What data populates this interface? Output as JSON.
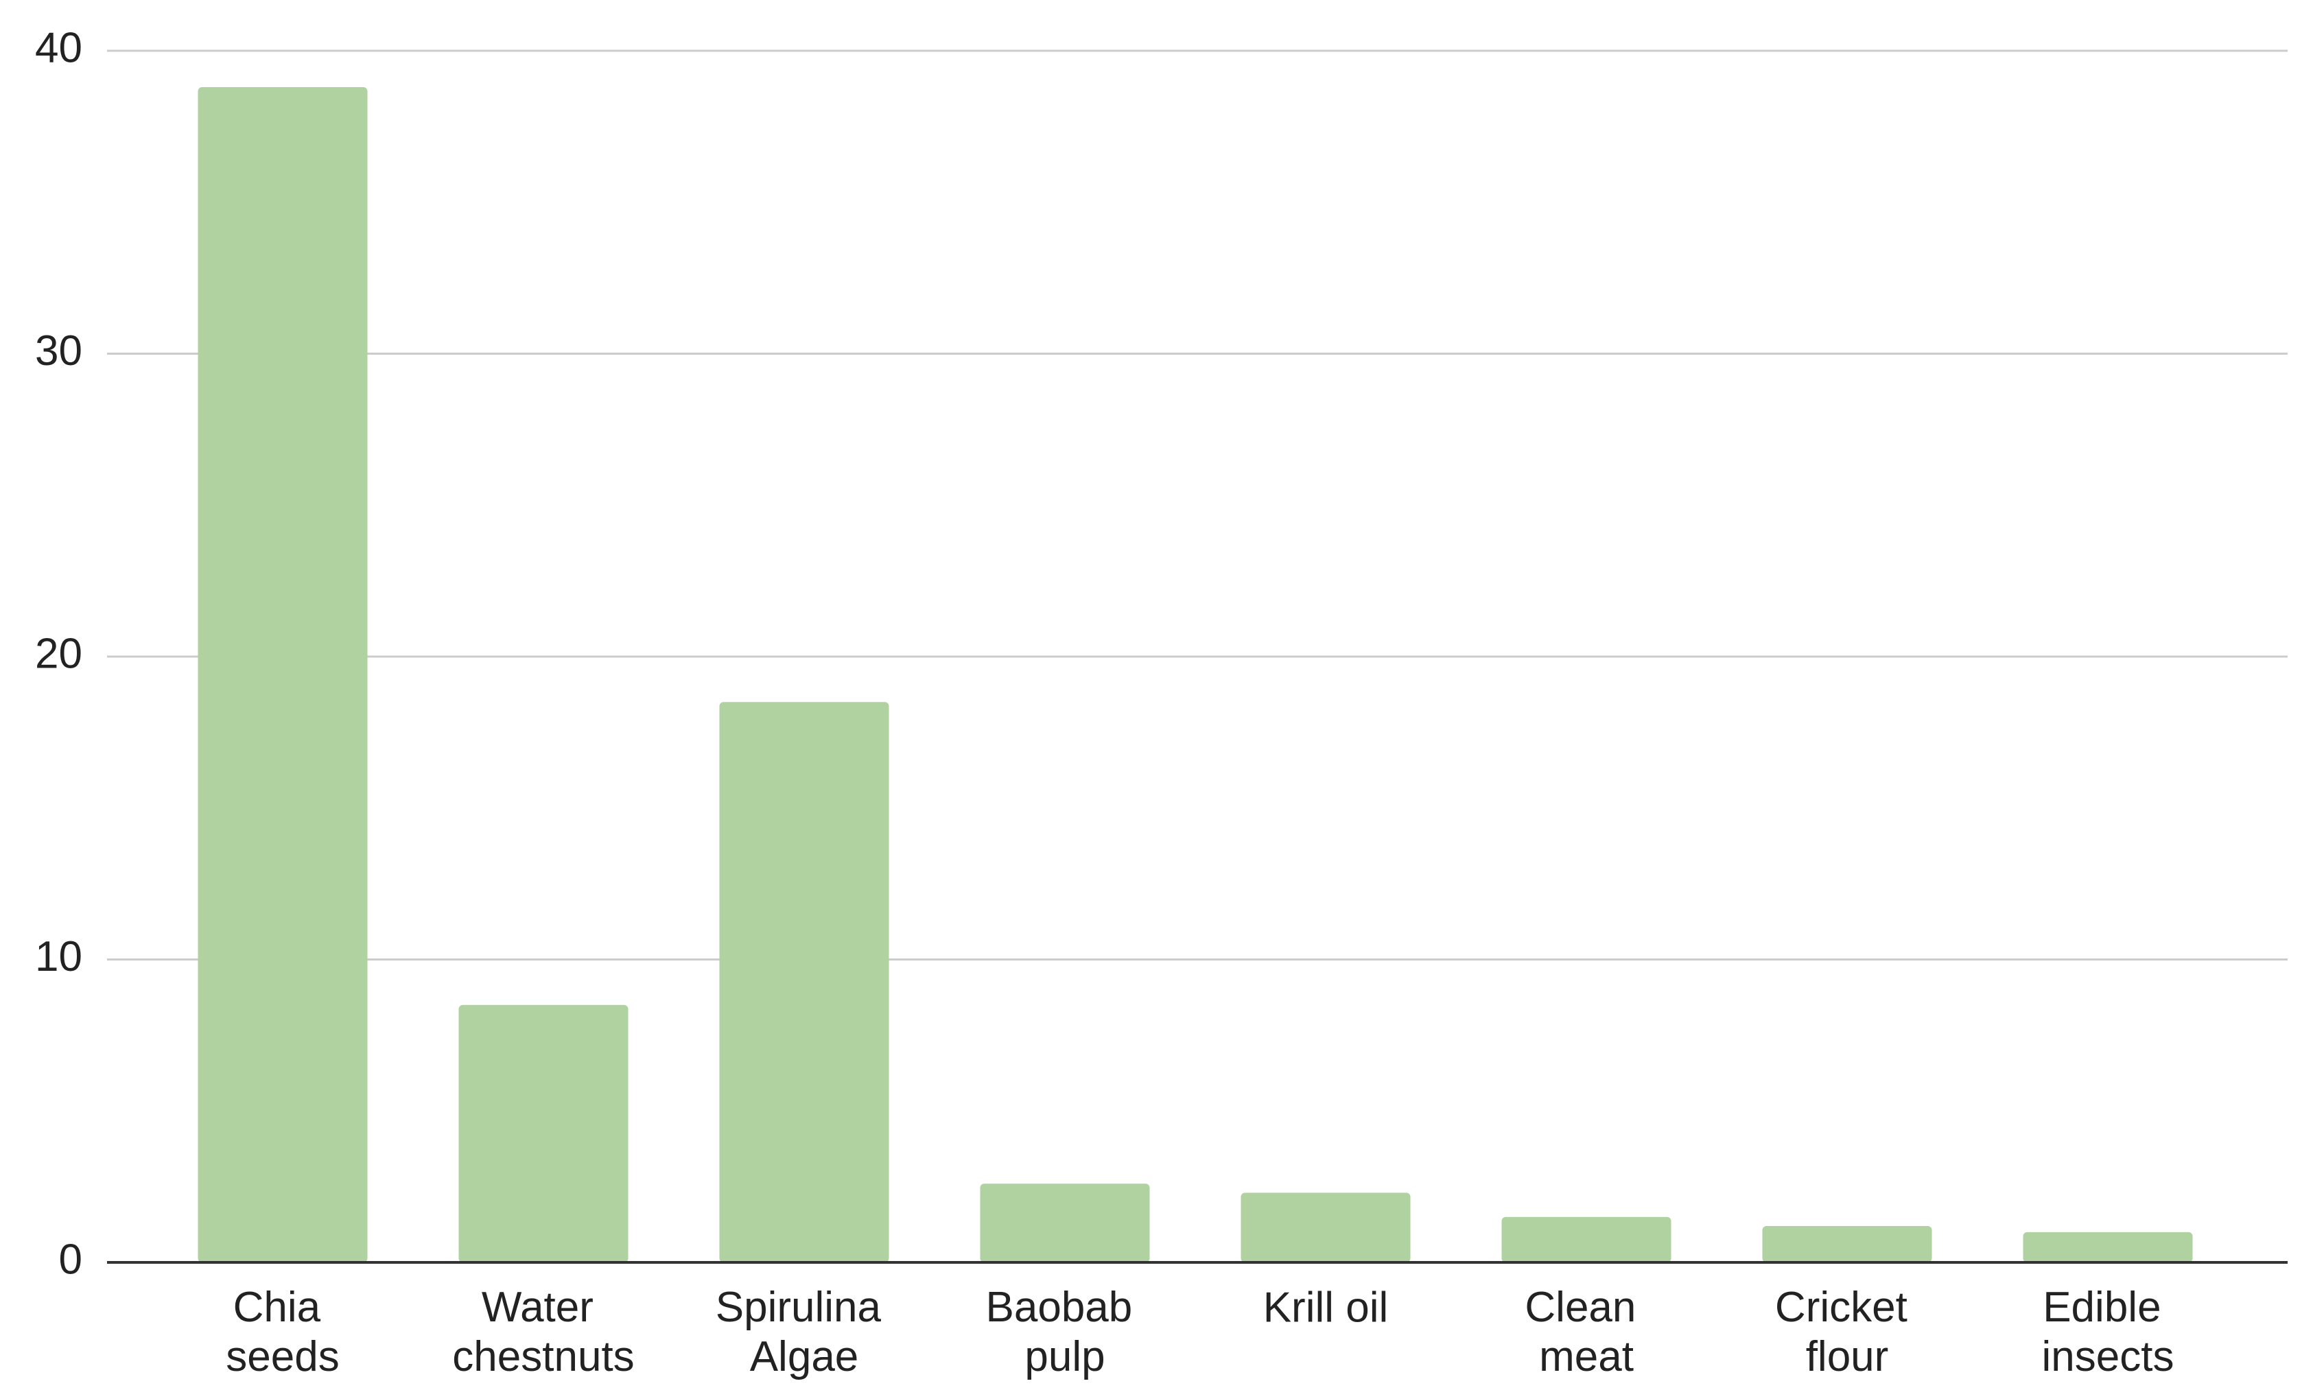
{
  "chart_data": {
    "type": "bar",
    "categories": [
      "Chia seeds",
      "Water chestnuts",
      "Spirulina Algae",
      "Baobab pulp",
      "Krill oil",
      "Clean meat",
      "Cricket flour",
      "Edible insects"
    ],
    "values": [
      38.8,
      8.5,
      18.5,
      2.6,
      2.3,
      1.5,
      1.2,
      1.0
    ],
    "color": "#b0d1a0",
    "ylim": [
      0,
      40
    ],
    "yticks": [
      0,
      10,
      20,
      30,
      40
    ],
    "grid": true
  }
}
